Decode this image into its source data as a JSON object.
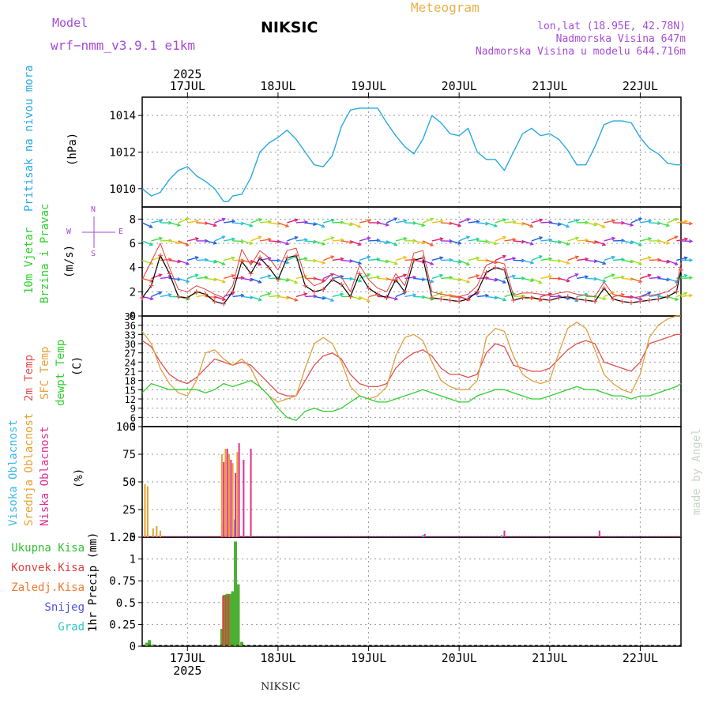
{
  "header": {
    "model_label": "Model",
    "model_name": "wrf−nmm_v3.9.1  e1km",
    "station": "NIKSIC",
    "meteogram": "Meteogram",
    "lonlat": "lon,lat (18.95E, 42.78N)",
    "elevation": "Nadmorska Visina 647m",
    "elevation_model": "Nadmorska Visina u modelu 644.716m",
    "footer": "NIKSIC",
    "watermark": "made by Angel"
  },
  "time_axis": {
    "year": "2025",
    "day_labels": [
      "17JUL",
      "18JUL",
      "19JUL",
      "20JUL",
      "21JUL",
      "22JUL"
    ],
    "day_positions": [
      1,
      2,
      3,
      4,
      5,
      6
    ],
    "range_days": [
      0.5,
      6.45
    ]
  },
  "panels": {
    "pressure": {
      "label": "Pritisak na nivou mora",
      "unit": "(hPa)"
    },
    "wind": {
      "label1": "10m Vjetar",
      "label2": "Brzina i Pravac",
      "unit": "(m/s)",
      "compass_n": "N",
      "compass_w": "W",
      "compass_e": "E",
      "compass_s": "S"
    },
    "temp": {
      "label1": "2m Temp",
      "label2": "SFC Temp",
      "label3": "dewpt Temp",
      "unit": "(C)"
    },
    "cloud": {
      "label1": "Visoka Oblacnost",
      "label2": "Srednja Oblacnost",
      "label3": "Niska Oblacnost",
      "unit": "(%)"
    },
    "precip": {
      "legend": [
        "Ukupna Kisa",
        "Konvek.Kisa",
        "Zaledj.Kisa",
        "Snijeg",
        "Grad"
      ],
      "unit": "1hr Precip (mm)"
    }
  },
  "colors": {
    "pressure": "#2aa8e0",
    "temp2m": "#e05050",
    "sfc": "#e0a040",
    "dewpt": "#30d030",
    "total_rain": "#4caf32",
    "conv_rain": "#e04040",
    "frz_rain": "#f07830",
    "snow": "#5050e0",
    "hail": "#30c8c8",
    "cloud_high": "#40b8e8",
    "cloud_mid": "#e8a030",
    "cloud_low": "#e03090",
    "gust": "#a040e0"
  },
  "chart_data": [
    {
      "type": "line",
      "title": "Pritisak na nivou mora",
      "ylabel": "(hPa)",
      "ylim": [
        1009,
        1015
      ],
      "yticks": [
        1010,
        1012,
        1014
      ],
      "x": [
        0.5,
        0.6,
        0.7,
        0.8,
        0.9,
        1.0,
        1.1,
        1.2,
        1.3,
        1.4,
        1.45,
        1.5,
        1.6,
        1.7,
        1.8,
        1.9,
        2.0,
        2.1,
        2.2,
        2.3,
        2.4,
        2.5,
        2.6,
        2.7,
        2.8,
        2.9,
        3.0,
        3.1,
        3.2,
        3.3,
        3.4,
        3.5,
        3.6,
        3.7,
        3.8,
        3.9,
        4.0,
        4.1,
        4.2,
        4.3,
        4.4,
        4.5,
        4.6,
        4.7,
        4.8,
        4.9,
        5.0,
        5.1,
        5.2,
        5.3,
        5.4,
        5.5,
        5.6,
        5.7,
        5.8,
        5.9,
        6.0,
        6.1,
        6.2,
        6.3,
        6.4,
        6.45
      ],
      "series": [
        {
          "values": [
            1010.0,
            1009.6,
            1009.8,
            1010.5,
            1011.0,
            1011.2,
            1010.7,
            1010.4,
            1010.0,
            1009.3,
            1009.3,
            1009.6,
            1009.7,
            1010.6,
            1012.0,
            1012.5,
            1012.8,
            1013.2,
            1012.7,
            1012.0,
            1011.3,
            1011.2,
            1011.8,
            1013.4,
            1014.3,
            1014.4,
            1014.4,
            1014.4,
            1013.6,
            1012.9,
            1012.3,
            1011.9,
            1012.7,
            1014.0,
            1013.6,
            1013.0,
            1012.9,
            1013.3,
            1012.0,
            1011.6,
            1011.6,
            1011.0,
            1012.0,
            1013.0,
            1013.3,
            1012.9,
            1013.0,
            1012.7,
            1012.1,
            1011.3,
            1011.3,
            1012.3,
            1013.5,
            1013.7,
            1013.7,
            1013.6,
            1012.8,
            1012.2,
            1011.9,
            1011.4,
            1011.3,
            1011.3
          ]
        }
      ]
    },
    {
      "type": "line",
      "title": "10m Vjetar Brzina i Pravac",
      "ylabel": "(m/s)",
      "ylim": [
        0,
        9
      ],
      "yticks": [
        0,
        2,
        4,
        6,
        8
      ],
      "x": [
        0.5,
        0.6,
        0.7,
        0.8,
        0.9,
        1.0,
        1.1,
        1.2,
        1.3,
        1.4,
        1.5,
        1.6,
        1.7,
        1.8,
        1.9,
        2.0,
        2.1,
        2.2,
        2.3,
        2.4,
        2.5,
        2.6,
        2.7,
        2.8,
        2.9,
        3.0,
        3.1,
        3.2,
        3.3,
        3.4,
        3.5,
        3.6,
        3.7,
        3.8,
        3.9,
        4.0,
        4.1,
        4.2,
        4.3,
        4.4,
        4.5,
        4.6,
        4.7,
        4.8,
        4.9,
        5.0,
        5.1,
        5.2,
        5.3,
        5.4,
        5.5,
        5.6,
        5.7,
        5.8,
        5.9,
        6.0,
        6.1,
        6.2,
        6.3,
        6.4,
        6.45
      ],
      "series": [
        {
          "name": "wind",
          "values": [
            1.5,
            2.5,
            5.0,
            3.5,
            1.6,
            1.5,
            2.0,
            1.8,
            1.2,
            1.0,
            2.0,
            4.5,
            3.5,
            4.8,
            4.0,
            3.0,
            4.8,
            5.0,
            2.5,
            2.0,
            2.2,
            3.0,
            2.6,
            1.6,
            3.5,
            2.3,
            1.8,
            1.5,
            3.0,
            2.0,
            4.6,
            4.8,
            1.5,
            1.4,
            1.3,
            1.2,
            1.4,
            2.0,
            3.6,
            4.0,
            3.8,
            1.3,
            1.5,
            1.5,
            1.4,
            1.3,
            1.5,
            1.6,
            1.4,
            1.3,
            1.2,
            2.3,
            1.4,
            1.2,
            1.1,
            1.2,
            1.3,
            1.4,
            1.6,
            2.0,
            3.8
          ]
        },
        {
          "name": "gust",
          "values": [
            3.0,
            4.5,
            6.0,
            4.0,
            2.2,
            2.0,
            2.5,
            2.2,
            1.8,
            1.5,
            2.5,
            5.5,
            4.2,
            5.4,
            4.8,
            3.8,
            5.4,
            5.6,
            3.2,
            2.5,
            2.8,
            3.5,
            3.2,
            2.0,
            4.2,
            3.0,
            2.3,
            2.0,
            3.5,
            2.5,
            5.2,
            5.4,
            2.0,
            1.8,
            1.7,
            1.6,
            1.8,
            2.5,
            4.2,
            4.5,
            4.3,
            1.7,
            1.9,
            1.9,
            1.8,
            1.7,
            1.9,
            2.0,
            1.8,
            1.7,
            1.6,
            2.8,
            1.8,
            1.6,
            1.5,
            1.6,
            1.7,
            1.8,
            2.0,
            2.5,
            4.4
          ]
        }
      ]
    },
    {
      "type": "line",
      "title": "2m Temp / SFC Temp / dewpt Temp",
      "ylabel": "(C)",
      "ylim": [
        3,
        39
      ],
      "yticks": [
        3,
        6,
        9,
        12,
        15,
        18,
        21,
        24,
        27,
        30,
        33,
        36,
        39
      ],
      "x": [
        0.5,
        0.6,
        0.7,
        0.8,
        0.9,
        1.0,
        1.1,
        1.2,
        1.3,
        1.4,
        1.5,
        1.6,
        1.7,
        1.8,
        1.9,
        2.0,
        2.1,
        2.2,
        2.3,
        2.4,
        2.5,
        2.6,
        2.7,
        2.8,
        2.9,
        3.0,
        3.1,
        3.2,
        3.3,
        3.4,
        3.5,
        3.6,
        3.7,
        3.8,
        3.9,
        4.0,
        4.1,
        4.2,
        4.3,
        4.4,
        4.5,
        4.6,
        4.7,
        4.8,
        4.9,
        5.0,
        5.1,
        5.2,
        5.3,
        5.4,
        5.5,
        5.6,
        5.7,
        5.8,
        5.9,
        6.0,
        6.1,
        6.2,
        6.3,
        6.4,
        6.45
      ],
      "series": [
        {
          "name": "2m Temp",
          "values": [
            31,
            29,
            24,
            20,
            18,
            17,
            19,
            22,
            25,
            24,
            23,
            24,
            23,
            20,
            17,
            14,
            13,
            13,
            18,
            23,
            26,
            27,
            25,
            20,
            17,
            16,
            16,
            17,
            22,
            25,
            27,
            28,
            26,
            22,
            20,
            20,
            19,
            20,
            27,
            30,
            29,
            23,
            22,
            21,
            21,
            22,
            25,
            28,
            30,
            31,
            30,
            24,
            23,
            22,
            21,
            24,
            30,
            31,
            32,
            33,
            33
          ]
        },
        {
          "name": "SFC Temp",
          "values": [
            34,
            30,
            22,
            17,
            14,
            13,
            18,
            27,
            28,
            25,
            23,
            25,
            22,
            16,
            13,
            11,
            12,
            13,
            22,
            30,
            32,
            30,
            24,
            16,
            13,
            12,
            13,
            16,
            26,
            32,
            33,
            31,
            24,
            18,
            16,
            15,
            15,
            18,
            32,
            35,
            34,
            26,
            20,
            18,
            17,
            18,
            27,
            35,
            37,
            35,
            28,
            20,
            17,
            15,
            14,
            20,
            32,
            36,
            38,
            39,
            39
          ]
        },
        {
          "name": "dewpt Temp",
          "values": [
            14,
            17,
            16,
            15,
            15,
            15,
            15,
            14,
            15,
            17,
            16,
            17,
            18,
            16,
            13,
            9,
            6,
            5,
            8,
            9,
            8,
            8,
            9,
            11,
            13,
            12,
            11,
            11,
            12,
            13,
            14,
            15,
            14,
            13,
            12,
            11,
            11,
            13,
            14,
            15,
            15,
            14,
            13,
            12,
            12,
            13,
            14,
            15,
            16,
            15,
            15,
            14,
            13,
            13,
            12,
            13,
            13,
            14,
            15,
            16,
            17
          ]
        }
      ]
    },
    {
      "type": "bar",
      "title": "Visoka / Srednja / Niska Oblacnost",
      "ylabel": "(%)",
      "ylim": [
        0,
        100
      ],
      "yticks": [
        0,
        25,
        50,
        75,
        100
      ],
      "series": [
        {
          "name": "Visoka Oblacnost",
          "x": [
            1.38,
            1.46,
            1.52,
            3.6,
            4.47
          ],
          "values": [
            12,
            18,
            16,
            2,
            2
          ]
        },
        {
          "name": "Srednja Oblacnost",
          "x": [
            0.53,
            0.56,
            0.62,
            0.66,
            0.7,
            1.38,
            1.42,
            1.46,
            1.5,
            1.55
          ],
          "values": [
            48,
            46,
            8,
            10,
            6,
            75,
            80,
            75,
            67,
            77
          ]
        },
        {
          "name": "Niska Oblacnost",
          "x": [
            1.4,
            1.44,
            1.48,
            1.53,
            1.57,
            1.62,
            1.7,
            3.62,
            4.5,
            5.55
          ],
          "values": [
            68,
            80,
            70,
            58,
            85,
            70,
            80,
            3,
            6,
            6
          ]
        }
      ]
    },
    {
      "type": "bar",
      "title": "1hr Precip",
      "ylabel": "1hr Precip (mm)",
      "ylim": [
        0,
        1.25
      ],
      "yticks": [
        0,
        0.25,
        0.5,
        0.75,
        1,
        1.25
      ],
      "series": [
        {
          "name": "Ukupna Kisa",
          "x": [
            0.55,
            0.58,
            0.62,
            1.38,
            1.41,
            1.44,
            1.47,
            1.5,
            1.53,
            1.56,
            1.6
          ],
          "values": [
            0.04,
            0.07,
            0.02,
            0.2,
            0.59,
            0.6,
            0.6,
            0.63,
            1.2,
            0.71,
            0.05
          ]
        },
        {
          "name": "Konvek.Kisa",
          "x": [
            1.41,
            1.44,
            1.47
          ],
          "values": [
            0.58,
            0.58,
            0.59
          ]
        },
        {
          "name": "Zaledj.Kisa",
          "x": [
            0.62
          ],
          "values": [
            0.01
          ]
        }
      ]
    }
  ]
}
